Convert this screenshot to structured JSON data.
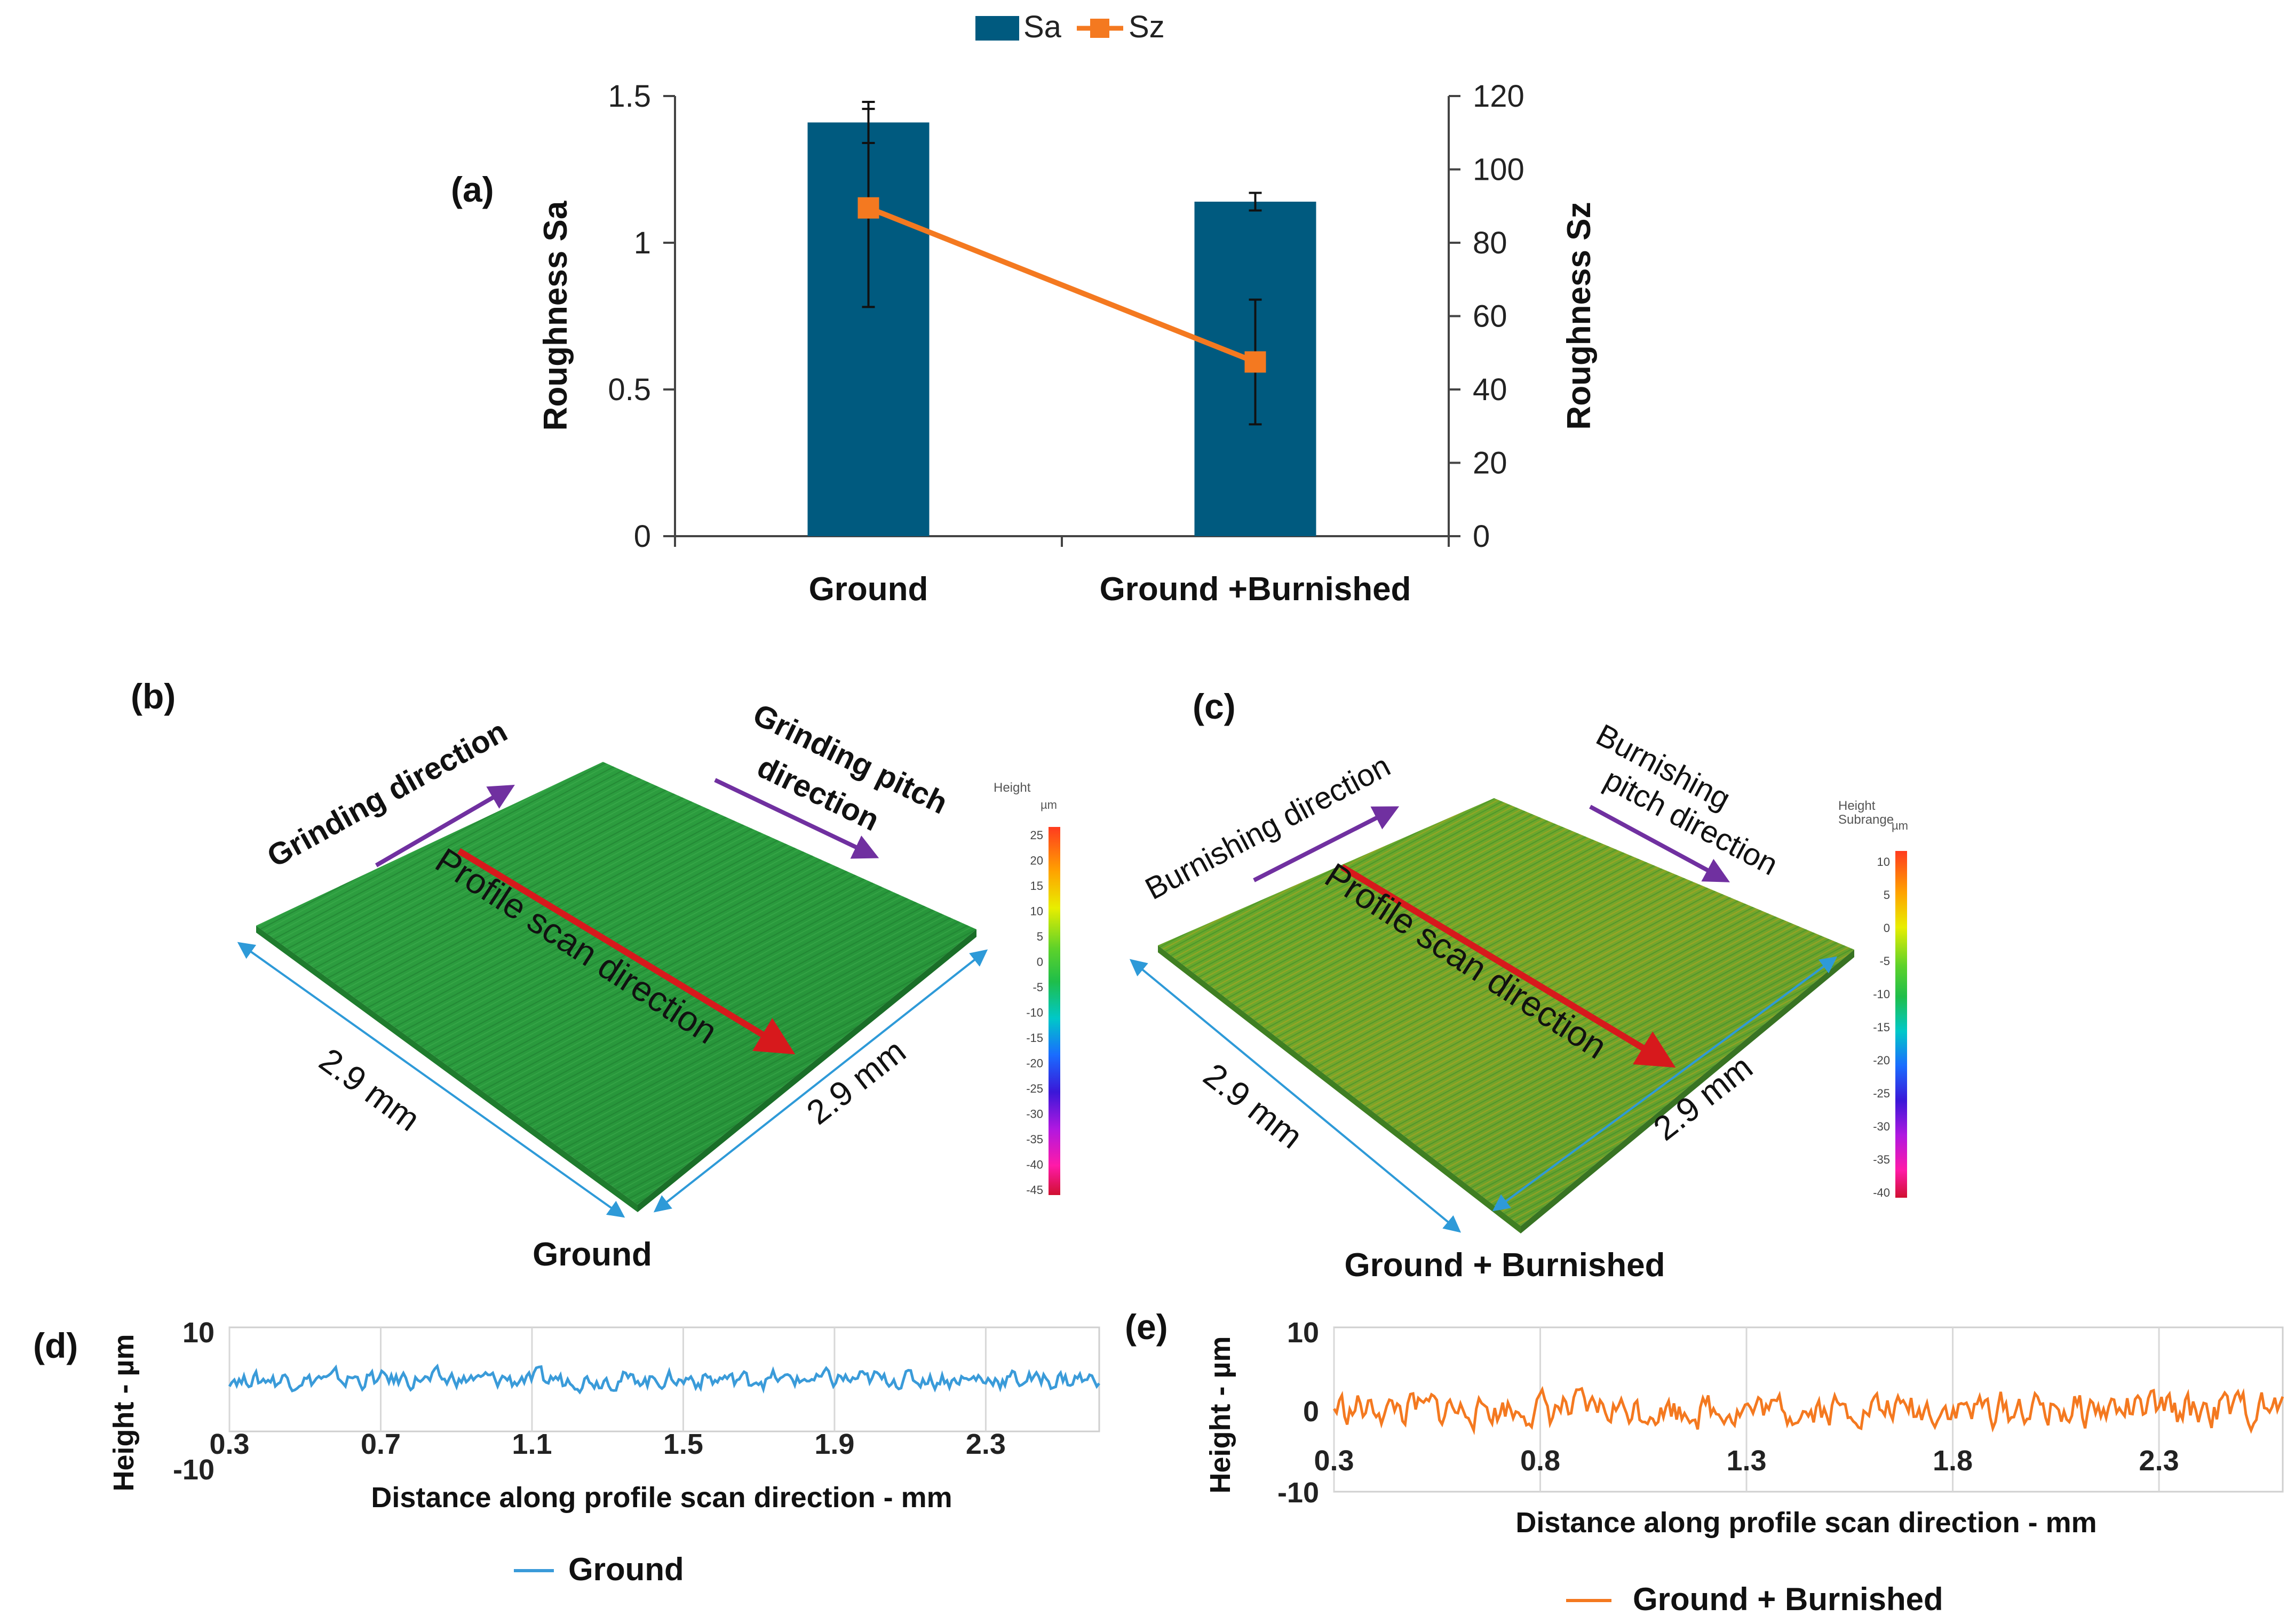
{
  "colors": {
    "sa_bar": "#005A7F",
    "sz_line": "#F47920",
    "ground_profile": "#3A9BD9",
    "burnished_profile": "#F47920",
    "arrow_red": "#D7191C",
    "arrow_purple": "#7030A0",
    "dim_blue": "#2E9AD8",
    "surface_green": "#2E9E3F"
  },
  "chart_data": [
    {
      "id": "a",
      "type": "bar",
      "panel_label": "(a)",
      "legend": [
        "Sa",
        "Sz"
      ],
      "categories": [
        "Ground",
        "Ground +Burnished"
      ],
      "series": [
        {
          "name": "Sa",
          "type": "bar",
          "axis": "left",
          "values": [
            1.41,
            1.14
          ],
          "error": [
            0.07,
            0.03
          ]
        },
        {
          "name": "Sz",
          "type": "line",
          "axis": "right",
          "values": [
            89.5,
            47.5
          ],
          "error": [
            27,
            17
          ]
        }
      ],
      "ylabel": "Roughness Sa",
      "ylim": [
        0,
        1.5
      ],
      "yticks": [
        "0",
        "0.5",
        "1",
        "1.5"
      ],
      "y2label": "Roughness Sz",
      "y2lim": [
        0,
        120
      ],
      "y2ticks": [
        "0",
        "20",
        "40",
        "60",
        "80",
        "100",
        "120"
      ]
    },
    {
      "id": "d",
      "type": "line",
      "panel_label": "(d)",
      "series": [
        {
          "name": "Ground",
          "baseline": 0,
          "amplitude": 2.5
        }
      ],
      "xlim": [
        0.3,
        2.6
      ],
      "xticks": [
        "0.3",
        "0.7",
        "1.1",
        "1.5",
        "1.9",
        "2.3"
      ],
      "ylim": [
        -10,
        10
      ],
      "yticks": [
        "10",
        "-10"
      ],
      "xlabel": "Distance along profile scan direction - mm",
      "ylabel": "Height - µm"
    },
    {
      "id": "e",
      "type": "line",
      "panel_label": "(e)",
      "series": [
        {
          "name": "Ground + Burnished",
          "baseline": 0,
          "amplitude": 3
        }
      ],
      "xlim": [
        0.3,
        2.6
      ],
      "xticks": [
        "0.3",
        "0.8",
        "1.3",
        "1.8",
        "2.3"
      ],
      "ylim": [
        -10,
        10
      ],
      "yticks": [
        "10",
        "0",
        "-10"
      ],
      "xlabel": "Distance along profile scan direction - mm",
      "ylabel": "Height - µm"
    }
  ],
  "panel_b": {
    "label": "(b)",
    "caption": "Ground",
    "direction_1": "Grinding direction",
    "direction_2_line1": "Grinding pitch",
    "direction_2_line2": "direction",
    "scan": "Profile scan direction",
    "dim_left": "2.9 mm",
    "dim_right": "2.9 mm",
    "scale_title": "Height",
    "scale_unit": "µm",
    "scale_ticks": [
      "25",
      "20",
      "15",
      "10",
      "5",
      "0",
      "-5",
      "-10",
      "-15",
      "-20",
      "-25",
      "-30",
      "-35",
      "-40",
      "-45"
    ]
  },
  "panel_c": {
    "label": "(c)",
    "caption": "Ground + Burnished",
    "direction_1": "Burnishing direction",
    "direction_2_line1": "Burnishing",
    "direction_2_line2": "pitch direction",
    "scan": "Profile scan direction",
    "dim_left": "2.9 mm",
    "dim_right": "2.9 mm",
    "scale_title": "Height",
    "scale_subtitle": "Subrange",
    "scale_unit": "µm",
    "scale_ticks": [
      "10",
      "5",
      "0",
      "-5",
      "-10",
      "-15",
      "-20",
      "-25",
      "-30",
      "-35",
      "-40"
    ]
  }
}
